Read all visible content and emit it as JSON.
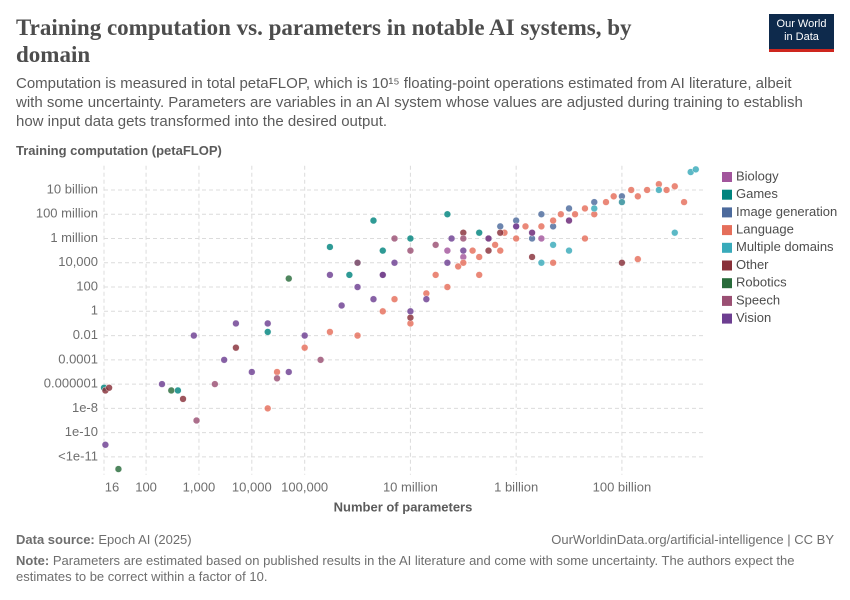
{
  "header": {
    "logo_line1": "Our World",
    "logo_line2": "in Data"
  },
  "chart_data": {
    "type": "scatter",
    "title": "Training computation vs. parameters in notable AI systems, by domain",
    "subtitle": "Computation is measured in total petaFLOP, which is 10¹⁵ floating-point operations estimated from AI literature, albeit with some uncertainty. Parameters are variables in an AI system whose values are adjusted during training to establish how input data gets transformed into the desired output.",
    "y_label": "Training computation (petaFLOP)",
    "x_label": "Number of parameters",
    "log_x": true,
    "log_y": true,
    "grid": true,
    "legend_position": "right",
    "xlim": [
      16,
      3000000000000
    ],
    "xticks": [
      16,
      100,
      {
        "value": 1000,
        "label": "1,000"
      },
      {
        "value": 10000,
        "label": "10,000"
      },
      {
        "value": 100000,
        "label": "100,000"
      },
      {
        "value": 10000000,
        "label": "10 million"
      },
      {
        "value": 1000000000,
        "label": "1 billion"
      },
      {
        "value": 100000000000,
        "label": "100 billion"
      }
    ],
    "ylim": [
      5e-14,
      1000000000000
    ],
    "yticks": [
      {
        "value": 1e-12,
        "label": "<1e-11"
      },
      1e-10,
      1e-08,
      1e-06,
      0.0001,
      0.01,
      1,
      100,
      {
        "value": 10000,
        "label": "10,000"
      },
      {
        "value": 1000000,
        "label": "1 million"
      },
      {
        "value": 100000000,
        "label": "100 million"
      },
      {
        "value": 10000000000,
        "label": "10 billion"
      }
    ],
    "series": [
      {
        "name": "Biology",
        "color": "#a2559c",
        "x": [
          300000000.0,
          1000000000.0,
          3000000000.0,
          50000000.0,
          100000000.0
        ],
        "values": [
          1000000.0,
          10000000.0,
          1000000.0,
          100000.0,
          30000.0
        ]
      },
      {
        "name": "Games",
        "color": "#00847e",
        "x": [
          16,
          400,
          20000,
          1000000.0,
          2000000.0,
          3000000.0,
          50000000.0,
          200000000.0,
          300000,
          10000000.0,
          100000000000.0,
          700000.0
        ],
        "values": [
          5e-07,
          3e-07,
          0.02,
          10000.0,
          30000000.0,
          100000.0,
          100000000.0,
          3000000.0,
          200000.0,
          1000000.0,
          1000000000.0,
          1000
        ]
      },
      {
        "name": "Image generation",
        "color": "#4c6a9c",
        "x": [
          300000000.0,
          1000000000.0,
          3000000000.0,
          10000000000.0,
          30000000000.0,
          100000000000.0,
          500000000.0,
          2000000000.0,
          5000000000.0
        ],
        "values": [
          1000000.0,
          30000000.0,
          100000000.0,
          300000000.0,
          1000000000.0,
          3000000000.0,
          10000000.0,
          1000000.0,
          10000000.0
        ]
      },
      {
        "name": "Language",
        "color": "#e56e5a",
        "x": [
          20000000.0,
          30000000.0,
          50000000.0,
          80000000.0,
          100000000.0,
          150000000.0,
          200000000.0,
          300000000.0,
          400000000.0,
          600000000.0,
          1000000000.0,
          1500000000.0,
          2000000000.0,
          3000000000.0,
          5000000000.0,
          7000000000.0,
          10000000000.0,
          13000000000.0,
          20000000000.0,
          30000000000.0,
          50000000000.0,
          70000000000.0,
          100000000000.0,
          150000000000.0,
          200000000000.0,
          300000000000.0,
          500000000000.0,
          700000000000.0,
          1000000000000.0,
          200000000000.0,
          1500000000000.0,
          1000000.0,
          3000000.0,
          5000000.0,
          10000000.0,
          200000000.0,
          500000000.0,
          20000000000.0,
          5000000000.0,
          100000.0,
          300000.0,
          30000.0,
          20000.0
        ],
        "values": [
          30,
          1000,
          100,
          5000,
          10000.0,
          100000.0,
          30000.0,
          1000000.0,
          300000.0,
          3000000.0,
          1000000.0,
          10000000.0,
          3000000.0,
          10000000.0,
          30000000.0,
          100000000.0,
          30000000.0,
          100000000.0,
          300000000.0,
          100000000.0,
          1000000000.0,
          3000000000.0,
          1000000000.0,
          10000000000.0,
          3000000000.0,
          10000000000.0,
          30000000000.0,
          10000000000.0,
          20000000000.0,
          20000.0,
          1000000000.0,
          0.01,
          1,
          10,
          0.1,
          1000,
          100000.0,
          1000000.0,
          10000.0,
          0.001,
          0.02,
          1e-05,
          1e-08
        ]
      },
      {
        "name": "Multiple domains",
        "color": "#38aaba",
        "x": [
          30000000000.0,
          100000000000.0,
          500000000000.0,
          1000000000000.0,
          2000000000000.0,
          2500000000000.0,
          3000000000.0,
          10000000000.0,
          5000000000.0
        ],
        "values": [
          300000000.0,
          1000000000.0,
          10000000000.0,
          3000000.0,
          300000000000.0,
          500000000000.0,
          10000.0,
          100000.0,
          300000.0
        ]
      },
      {
        "name": "Other",
        "color": "#883039",
        "x": [
          17,
          20,
          500,
          10000000.0,
          300000000.0,
          2000000000.0,
          100000000000.0,
          5000,
          100000000.0,
          500000000.0
        ],
        "values": [
          3e-07,
          5e-07,
          6e-08,
          0.3,
          100000.0,
          30000.0,
          10000.0,
          0.001,
          3000000.0,
          3000000.0
        ]
      },
      {
        "name": "Robotics",
        "color": "#286b3a",
        "x": [
          30,
          300,
          50000
        ],
        "values": [
          1e-13,
          3e-07,
          500
        ]
      },
      {
        "name": "Speech",
        "color": "#9a4f73",
        "x": [
          900,
          2000,
          30000,
          200000,
          1000000.0,
          3000000.0,
          10000000.0,
          30000000.0,
          100000000.0,
          5000000.0
        ],
        "values": [
          1e-09,
          1e-06,
          3e-06,
          0.0001,
          10000.0,
          1000,
          100000.0,
          300000.0,
          1000000.0,
          1000000.0
        ]
      },
      {
        "name": "Vision",
        "color": "#6d3e91",
        "x": [
          800,
          5000,
          20000,
          100000,
          500000,
          1000000.0,
          3000000.0,
          5000000.0,
          10000000.0,
          20000000.0,
          50000000.0,
          60000000.0,
          100000000.0,
          300000000.0,
          1000000000.0,
          2000000000.0,
          10000000000.0,
          50000,
          200,
          17,
          3000,
          10000,
          300000,
          2000000.0
        ],
        "values": [
          0.01,
          0.1,
          0.1,
          0.01,
          3,
          100,
          1000,
          10000.0,
          1,
          10,
          10000.0,
          1000000.0,
          100000.0,
          1000000.0,
          10000000.0,
          3000000.0,
          30000000.0,
          1e-05,
          1e-06,
          1e-11,
          0.0001,
          1e-05,
          1000,
          10
        ]
      }
    ]
  },
  "footer": {
    "source_label": "Data source:",
    "source": "Epoch AI (2025)",
    "url": "OurWorldinData.org/artificial-intelligence | CC BY",
    "note_label": "Note:",
    "note": "Parameters are estimated based on published results in the AI literature and come with some uncertainty. The authors expect the estimates to be correct within a factor of 10."
  }
}
